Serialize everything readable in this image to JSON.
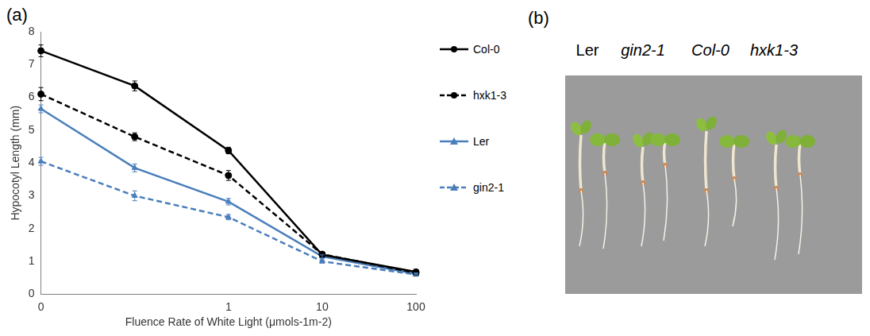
{
  "chart_data": {
    "type": "line",
    "xlabel": "Fluence Rate of White Light (μmols-1m-2)",
    "ylabel": "Hypocotyl Length (mm)",
    "categories": [
      "0",
      null,
      "1",
      "10",
      "100"
    ],
    "series": [
      {
        "name": "Col-0",
        "color": "#000000",
        "marker": "circle",
        "line_style": "solid",
        "values": [
          7.42,
          6.35,
          4.38,
          1.2,
          0.68
        ],
        "errors": [
          0.18,
          0.15,
          0.1,
          0.05,
          0.04
        ]
      },
      {
        "name": "hxk1-3",
        "color": "#000000",
        "marker": "circle",
        "line_style": "dashed",
        "values": [
          6.1,
          4.8,
          3.62,
          1.22,
          0.65
        ],
        "errors": [
          0.2,
          0.12,
          0.15,
          0.05,
          0.04
        ]
      },
      {
        "name": "Ler",
        "color": "#4a7ebb",
        "marker": "triangle",
        "line_style": "solid",
        "values": [
          5.65,
          3.85,
          2.82,
          1.15,
          0.62
        ],
        "errors": [
          0.12,
          0.12,
          0.1,
          0.05,
          0.03
        ]
      },
      {
        "name": "gin2-1",
        "color": "#4a7ebb",
        "marker": "triangle",
        "line_style": "dashed",
        "values": [
          4.05,
          3.0,
          2.35,
          1.0,
          0.6
        ],
        "errors": [
          0.12,
          0.15,
          0.08,
          0.05,
          0.03
        ]
      }
    ],
    "ylim": [
      0,
      8
    ],
    "yticks": [
      0,
      1,
      2,
      3,
      4,
      5,
      6,
      7,
      8
    ],
    "grid": false,
    "legend": "right"
  },
  "panel_labels": [
    "(a)",
    "(b)"
  ],
  "photo": {
    "labels": [
      "Ler",
      "gin2-1",
      "Col-0",
      "hxk1-3"
    ]
  }
}
